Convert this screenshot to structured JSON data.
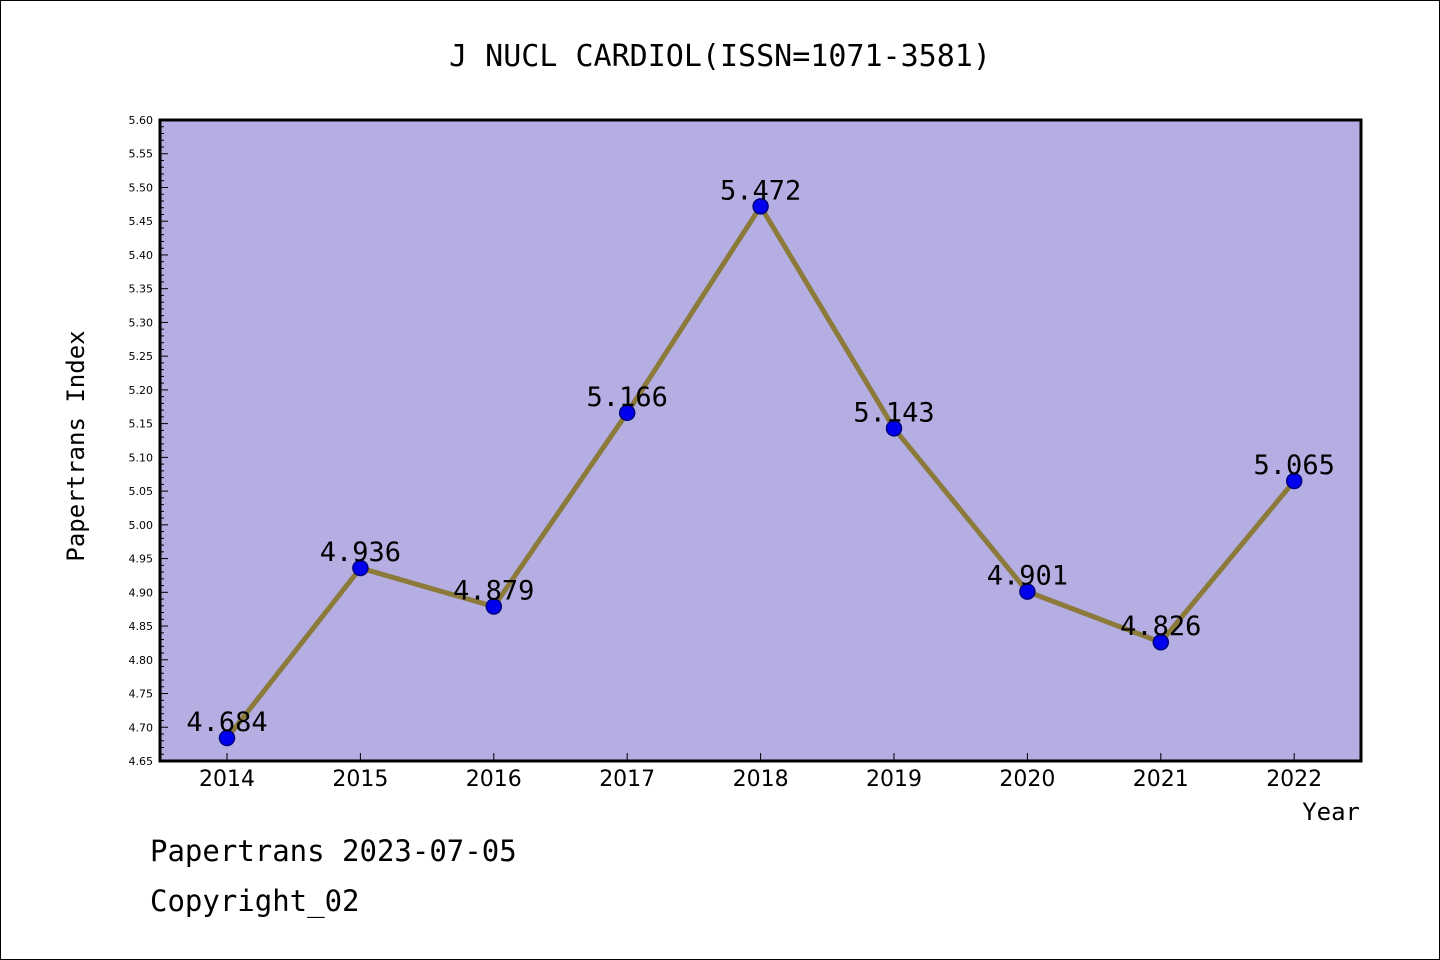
{
  "chart_data": {
    "type": "line",
    "title": "J NUCL CARDIOL(ISSN=1071-3581)",
    "xlabel": "Year",
    "ylabel": "Papertrans Index",
    "categories": [
      "2014",
      "2015",
      "2016",
      "2017",
      "2018",
      "2019",
      "2020",
      "2021",
      "2022"
    ],
    "series": [
      {
        "values": [
          4.684,
          4.936,
          4.879,
          5.166,
          5.472,
          5.143,
          4.901,
          4.826,
          5.065
        ],
        "labels": [
          "4.684",
          "4.936",
          "4.879",
          "5.166",
          "5.472",
          "5.143",
          "4.901",
          "4.826",
          "5.065"
        ]
      }
    ],
    "ylim": [
      4.65,
      5.6
    ],
    "yticks": [
      "4.65",
      "4.70",
      "4.75",
      "4.80",
      "4.85",
      "4.90",
      "4.95",
      "5.00",
      "5.05",
      "5.10",
      "5.15",
      "5.20",
      "5.25",
      "5.30",
      "5.35",
      "5.40",
      "5.45",
      "5.50",
      "5.55",
      "5.60"
    ],
    "grid": false,
    "colors": {
      "plot_background": "#b4aee2",
      "line": "#8b7a3a",
      "marker": "#0000ee",
      "marker_edge": "#000080"
    }
  },
  "footer": {
    "line1": "Papertrans 2023-07-05",
    "line2": "Copyright_02"
  }
}
